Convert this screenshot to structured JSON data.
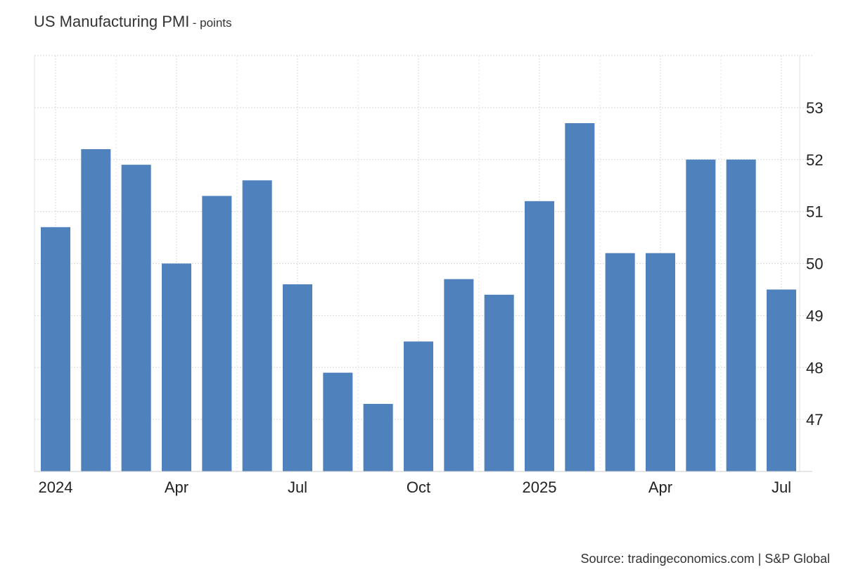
{
  "chart_data": {
    "type": "bar",
    "title": "US Manufacturing PMI",
    "unit": "- points",
    "source": "Source: tradingeconomics.com | S&P Global",
    "xlabel": "",
    "ylabel": "points",
    "ylim": [
      46,
      54
    ],
    "yticks": [
      "47",
      "48",
      "49",
      "50",
      "51",
      "52",
      "53"
    ],
    "grid": true,
    "bar_color": "#4f81bd",
    "categories": [
      "Jan 2024",
      "Feb 2024",
      "Mar 2024",
      "Apr 2024",
      "May 2024",
      "Jun 2024",
      "Jul 2024",
      "Aug 2024",
      "Sep 2024",
      "Oct 2024",
      "Nov 2024",
      "Dec 2024",
      "Jan 2025",
      "Feb 2025",
      "Mar 2025",
      "Apr 2025",
      "May 2025",
      "Jun 2025",
      "Jul 2025"
    ],
    "values": [
      50.7,
      52.2,
      51.9,
      50.0,
      51.3,
      51.6,
      49.6,
      47.9,
      47.3,
      48.5,
      49.7,
      49.4,
      51.2,
      52.7,
      50.2,
      50.2,
      52.0,
      52.0,
      49.5
    ],
    "xtick_labels": [
      {
        "label": "2024",
        "index": 0
      },
      {
        "label": "Apr",
        "index": 3
      },
      {
        "label": "Jul",
        "index": 6
      },
      {
        "label": "Oct",
        "index": 9
      },
      {
        "label": "2025",
        "index": 12
      },
      {
        "label": "Apr",
        "index": 15
      },
      {
        "label": "Jul",
        "index": 18
      }
    ]
  }
}
